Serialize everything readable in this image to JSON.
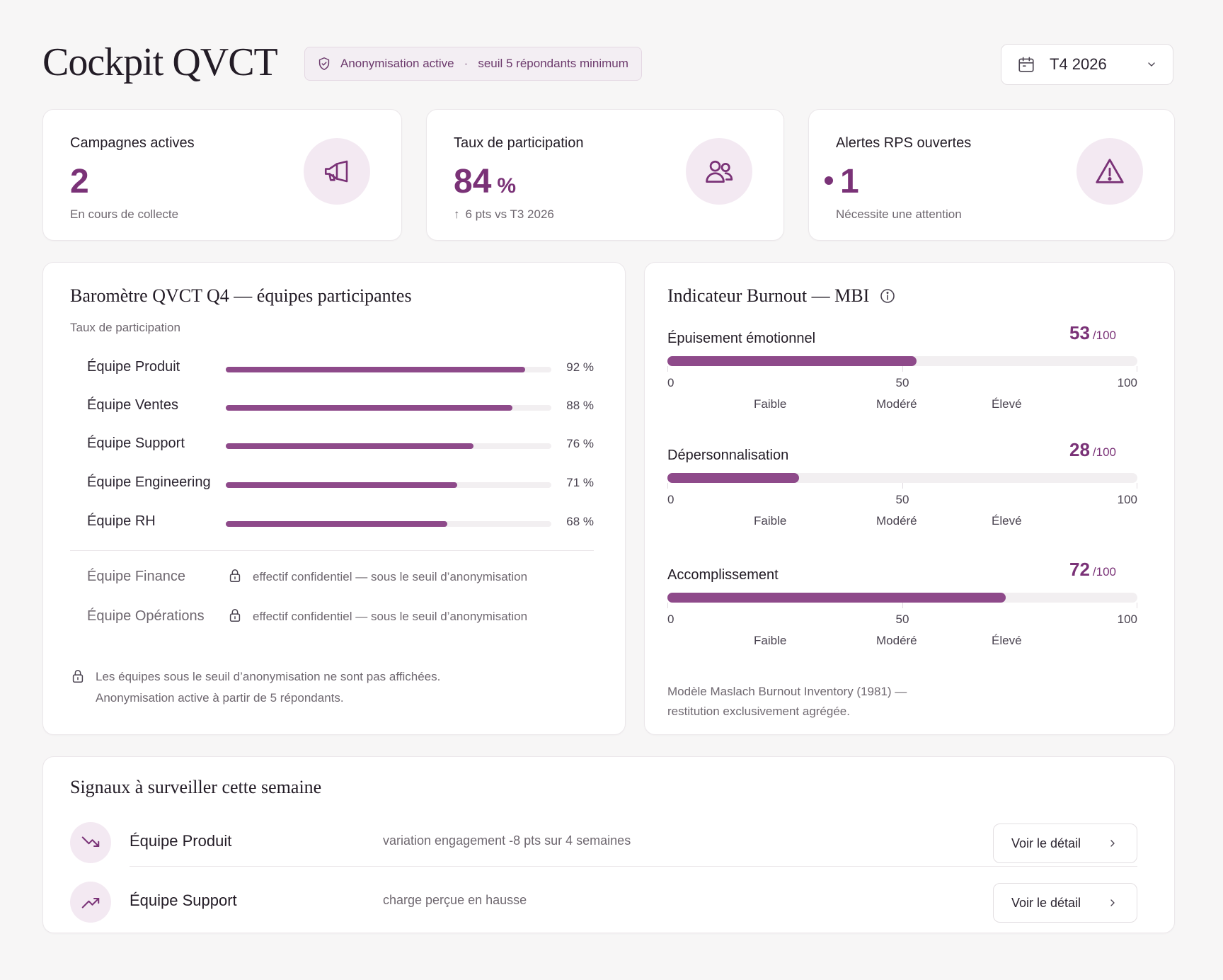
{
  "header": {
    "title": "Cockpit QVCT",
    "anon_chip": {
      "label": "Anonymisation active",
      "separator": "·",
      "threshold": "seuil 5 répondants minimum",
      "icon": "shield-icon"
    },
    "period": {
      "value": "T4 2026",
      "icon": "calendar-icon",
      "chevron": "chevron-down-icon"
    }
  },
  "kpis": {
    "campaigns": {
      "title": "Campagnes actives",
      "value": "2",
      "subtitle": "En cours de collecte",
      "icon": "megaphone-icon"
    },
    "participation": {
      "title": "Taux de participation",
      "value": "84",
      "unit": "%",
      "delta_arrow": "↑",
      "subtitle": "6 pts vs T3 2026",
      "icon": "users-icon"
    },
    "alerts": {
      "title": "Alertes RPS ouvertes",
      "value": "1",
      "subtitle": "Nécessite une attention",
      "icon": "warning-icon"
    }
  },
  "barometer": {
    "title": "Baromètre QVCT Q4 — équipes participantes",
    "subtitle": "Taux de participation",
    "teams": [
      {
        "name": "Équipe Produit",
        "value": 92,
        "label": "92 %"
      },
      {
        "name": "Équipe Ventes",
        "value": 88,
        "label": "88 %"
      },
      {
        "name": "Équipe Support",
        "value": 76,
        "label": "76 %"
      },
      {
        "name": "Équipe Engineering",
        "value": 71,
        "label": "71 %"
      },
      {
        "name": "Équipe RH",
        "value": 68,
        "label": "68 %"
      }
    ],
    "locked": [
      {
        "name": "Équipe Finance",
        "note": "effectif confidentiel — sous le seuil d’anonymisation"
      },
      {
        "name": "Équipe Opérations",
        "note": "effectif confidentiel — sous le seuil d’anonymisation"
      }
    ],
    "footnote": {
      "line1": "Les équipes sous le seuil d’anonymisation ne sont pas affichées.",
      "line2": "Anonymisation active à partir de 5 répondants."
    }
  },
  "burnout": {
    "title": "Indicateur Burnout — MBI",
    "max_label": "/100",
    "scale": {
      "min": "0",
      "mid": "50",
      "max": "100"
    },
    "zones": {
      "low": "Faible",
      "mid": "Modéré",
      "high": "Élevé"
    },
    "dimensions": [
      {
        "name": "Épuisement émotionnel",
        "score": "53",
        "value": 53
      },
      {
        "name": "Dépersonnalisation",
        "score": "28",
        "value": 28
      },
      {
        "name": "Accomplissement",
        "score": "72",
        "value": 72
      }
    ],
    "footnote": {
      "line1": "Modèle Maslach Burnout Inventory (1981) —",
      "line2": "restitution exclusivement agrégée."
    }
  },
  "signals": {
    "title": "Signaux à surveiller cette semaine",
    "items": [
      {
        "team": "Équipe Produit",
        "description": "variation engagement -8 pts sur 4 semaines",
        "button": "Voir le détail",
        "icon": "trend-down-icon"
      },
      {
        "team": "Équipe Support",
        "description": "charge perçue en hausse",
        "button": "Voir le détail",
        "icon": "trend-up-icon"
      }
    ]
  },
  "colors": {
    "accent": "#7a3277",
    "bar": "#8e4a8a",
    "icon_bg": "#f3e9f2",
    "background": "#f7f6f6"
  }
}
